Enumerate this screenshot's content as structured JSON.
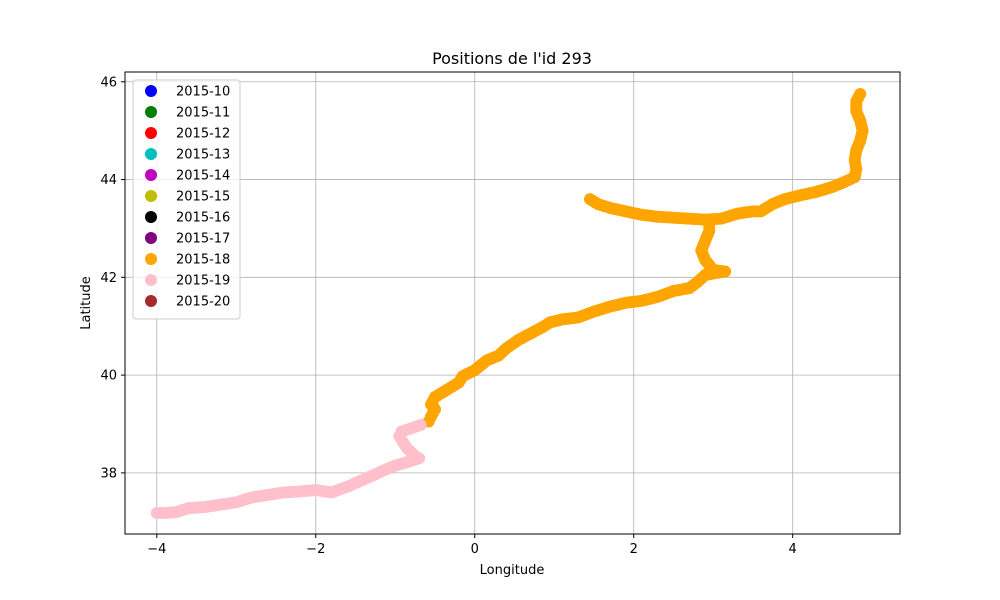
{
  "chart_data": {
    "type": "scatter",
    "title": "Positions de l'id 293",
    "xlabel": "Longitude",
    "ylabel": "Latitude",
    "xlim": [
      -4.4,
      5.35
    ],
    "ylim": [
      36.75,
      46.2
    ],
    "xticks": [
      -4,
      -2,
      0,
      2,
      4
    ],
    "xtick_labels": [
      "−4",
      "−2",
      "0",
      "2",
      "4"
    ],
    "yticks": [
      38,
      40,
      42,
      44,
      46
    ],
    "ytick_labels": [
      "38",
      "40",
      "42",
      "44",
      "46"
    ],
    "grid": true,
    "legend_position": "top-left",
    "series": [
      {
        "name": "2015-10",
        "color": "#0000ff",
        "points": []
      },
      {
        "name": "2015-11",
        "color": "#008000",
        "points": []
      },
      {
        "name": "2015-12",
        "color": "#ff0000",
        "points": []
      },
      {
        "name": "2015-13",
        "color": "#00bfbf",
        "points": []
      },
      {
        "name": "2015-14",
        "color": "#bf00bf",
        "points": []
      },
      {
        "name": "2015-15",
        "color": "#bfbf00",
        "points": []
      },
      {
        "name": "2015-16",
        "color": "#000000",
        "points": []
      },
      {
        "name": "2015-17",
        "color": "#800080",
        "points": []
      },
      {
        "name": "2015-18",
        "color": "#ffa500",
        "points": [
          [
            1.45,
            43.6
          ],
          [
            1.55,
            43.5
          ],
          [
            1.7,
            43.42
          ],
          [
            1.9,
            43.35
          ],
          [
            2.1,
            43.28
          ],
          [
            2.3,
            43.24
          ],
          [
            2.5,
            43.22
          ],
          [
            2.7,
            43.2
          ],
          [
            2.9,
            43.18
          ],
          [
            3.1,
            43.2
          ],
          [
            3.3,
            43.3
          ],
          [
            3.5,
            43.35
          ],
          [
            3.6,
            43.35
          ],
          [
            3.75,
            43.5
          ],
          [
            3.9,
            43.6
          ],
          [
            4.1,
            43.68
          ],
          [
            4.3,
            43.75
          ],
          [
            4.5,
            43.85
          ],
          [
            4.65,
            43.95
          ],
          [
            4.78,
            44.05
          ],
          [
            4.8,
            44.2
          ],
          [
            4.78,
            44.4
          ],
          [
            4.8,
            44.6
          ],
          [
            4.85,
            44.8
          ],
          [
            4.88,
            45.0
          ],
          [
            4.85,
            45.2
          ],
          [
            4.8,
            45.4
          ],
          [
            4.8,
            45.6
          ],
          [
            4.85,
            45.75
          ],
          [
            2.95,
            43.15
          ],
          [
            2.95,
            42.95
          ],
          [
            2.9,
            42.75
          ],
          [
            2.85,
            42.55
          ],
          [
            2.9,
            42.35
          ],
          [
            3.0,
            42.15
          ],
          [
            3.15,
            42.12
          ],
          [
            2.9,
            42.05
          ],
          [
            2.8,
            41.9
          ],
          [
            2.7,
            41.78
          ],
          [
            2.5,
            41.72
          ],
          [
            2.3,
            41.6
          ],
          [
            2.1,
            41.52
          ],
          [
            1.9,
            41.48
          ],
          [
            1.7,
            41.4
          ],
          [
            1.5,
            41.3
          ],
          [
            1.3,
            41.18
          ],
          [
            1.1,
            41.14
          ],
          [
            0.95,
            41.08
          ],
          [
            0.85,
            40.98
          ],
          [
            0.55,
            40.72
          ],
          [
            0.4,
            40.55
          ],
          [
            0.3,
            40.4
          ],
          [
            0.15,
            40.3
          ],
          [
            0.0,
            40.1
          ],
          [
            -0.15,
            39.98
          ],
          [
            -0.2,
            39.85
          ],
          [
            -0.35,
            39.7
          ],
          [
            -0.5,
            39.55
          ],
          [
            -0.55,
            39.4
          ],
          [
            -0.5,
            39.3
          ],
          [
            -0.55,
            39.15
          ],
          [
            -0.58,
            39.05
          ]
        ]
      },
      {
        "name": "2015-19",
        "color": "#ffc0cb",
        "points": [
          [
            -0.68,
            38.98
          ],
          [
            -0.82,
            38.9
          ],
          [
            -0.92,
            38.85
          ],
          [
            -0.95,
            38.75
          ],
          [
            -0.9,
            38.62
          ],
          [
            -0.85,
            38.5
          ],
          [
            -0.75,
            38.35
          ],
          [
            -0.7,
            38.3
          ],
          [
            -0.85,
            38.22
          ],
          [
            -1.0,
            38.15
          ],
          [
            -1.15,
            38.05
          ],
          [
            -1.28,
            37.95
          ],
          [
            -1.35,
            37.9
          ],
          [
            -1.6,
            37.72
          ],
          [
            -1.8,
            37.6
          ],
          [
            -2.0,
            37.65
          ],
          [
            -2.2,
            37.62
          ],
          [
            -2.4,
            37.6
          ],
          [
            -2.6,
            37.55
          ],
          [
            -2.8,
            37.5
          ],
          [
            -3.0,
            37.4
          ],
          [
            -3.2,
            37.35
          ],
          [
            -3.4,
            37.3
          ],
          [
            -3.6,
            37.28
          ],
          [
            -3.75,
            37.2
          ],
          [
            -3.9,
            37.18
          ],
          [
            -4.0,
            37.18
          ]
        ]
      },
      {
        "name": "2015-20",
        "color": "#a52a2a",
        "points": []
      }
    ]
  }
}
